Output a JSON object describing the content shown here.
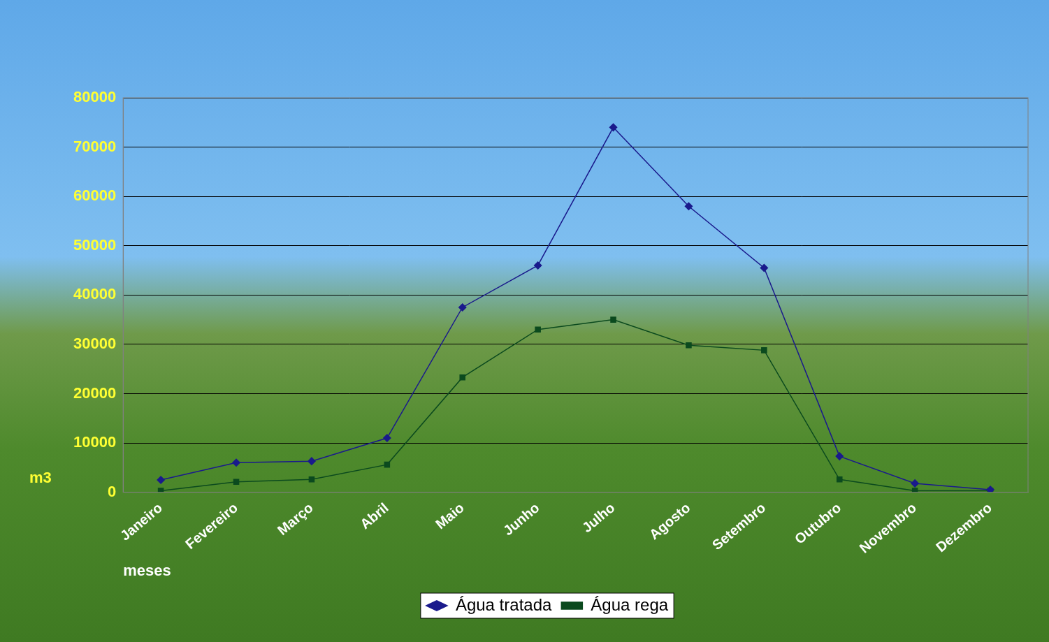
{
  "chart_data": {
    "type": "line",
    "x_label": "meses",
    "y_label": "m3",
    "categories": [
      "Janeiro",
      "Fevereiro",
      "Março",
      "Abril",
      "Maio",
      "Junho",
      "Julho",
      "Agosto",
      "Setembro",
      "Outubro",
      "Novembro",
      "Dezembro"
    ],
    "series": [
      {
        "name": "Água tratada",
        "color": "#1a1a8c",
        "marker": "diamond",
        "line_style": "solid",
        "values": [
          2500,
          6000,
          6300,
          11000,
          37500,
          46000,
          74000,
          58000,
          45500,
          7300,
          1800,
          500
        ]
      },
      {
        "name": "Água rega",
        "color": "#0b4a1e",
        "marker": "square",
        "line_style": "solid",
        "values": [
          300,
          2100,
          2600,
          5600,
          23300,
          33000,
          35000,
          29800,
          28800,
          2600,
          300,
          300
        ]
      }
    ],
    "ylim": [
      0,
      80000
    ],
    "yticks": [
      0,
      10000,
      20000,
      30000,
      40000,
      50000,
      60000,
      70000,
      80000
    ],
    "grid": true,
    "legend": "bottom"
  }
}
